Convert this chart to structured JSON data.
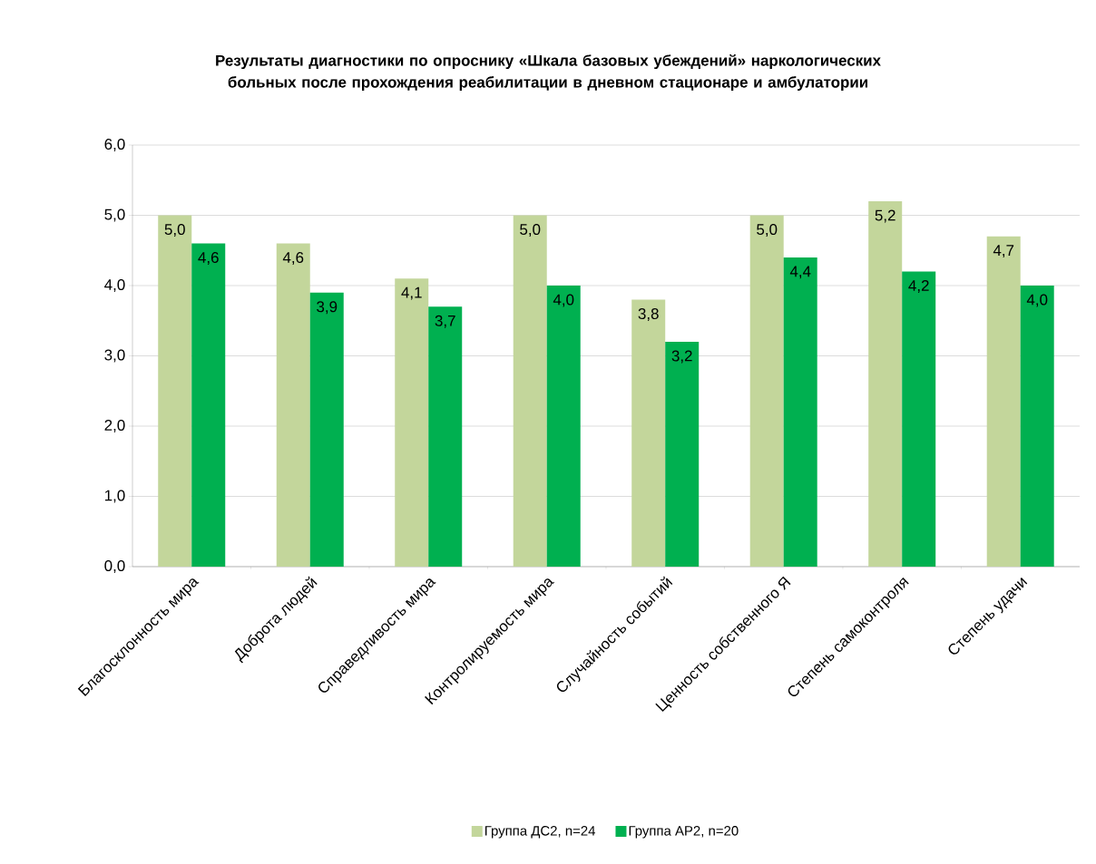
{
  "chart_data": {
    "type": "bar",
    "title": "Результаты диагностики по опроснику «Шкала базовых убеждений» наркологических больных после прохождения реабилитации в дневном стационаре и амбулатории",
    "categories": [
      "Благосклонность мира",
      "Доброта людей",
      "Справедливость мира",
      "Контролируемость мира",
      "Случайность событий",
      "Ценность собственного Я",
      "Степень самоконтроля",
      "Степень удачи"
    ],
    "series": [
      {
        "name": "Группа ДС2, n=24",
        "color": "#c3d69b",
        "values": [
          5.0,
          4.6,
          4.1,
          5.0,
          3.8,
          5.0,
          5.2,
          4.7
        ],
        "value_labels": [
          "5,0",
          "4,6",
          "4,1",
          "5,0",
          "3,8",
          "5,0",
          "5,2",
          "4,7"
        ]
      },
      {
        "name": "Группа АР2, n=20",
        "color": "#00b050",
        "values": [
          4.6,
          3.9,
          3.7,
          4.0,
          3.2,
          4.4,
          4.2,
          4.0
        ],
        "value_labels": [
          "4,6",
          "3,9",
          "3,7",
          "4,0",
          "3,2",
          "4,4",
          "4,2",
          "4,0"
        ]
      }
    ],
    "ylim": [
      0,
      6
    ],
    "yticks": [
      {
        "value": 0,
        "label": "0,0"
      },
      {
        "value": 1,
        "label": "1,0"
      },
      {
        "value": 2,
        "label": "2,0"
      },
      {
        "value": 3,
        "label": "3,0"
      },
      {
        "value": 4,
        "label": "4,0"
      },
      {
        "value": 5,
        "label": "5,0"
      },
      {
        "value": 6,
        "label": "6,0"
      }
    ],
    "grid": "y",
    "legend": "bottom"
  }
}
